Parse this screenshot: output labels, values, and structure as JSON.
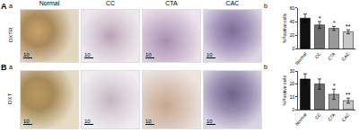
{
  "figure": {
    "columns": [
      "Normal",
      "CC",
      "CTA",
      "CAC"
    ],
    "rows": [
      {
        "label": "A",
        "panel_a": "a",
        "panel_b": "b",
        "stain": "OXTR",
        "scale_bar": "10"
      },
      {
        "label": "B",
        "panel_a": "a",
        "panel_b": "b",
        "stain": "OXT",
        "scale_bar": "10"
      }
    ]
  },
  "chart_data": [
    {
      "type": "bar",
      "categories": [
        "Normal",
        "CC",
        "CTA",
        "CAC"
      ],
      "values": [
        45,
        35,
        30,
        25
      ],
      "errors": [
        6,
        5,
        3,
        3
      ],
      "colors": [
        "#111111",
        "#6e6e6e",
        "#9a9a9a",
        "#c8c8c8"
      ],
      "ylim": [
        0,
        60
      ],
      "yticks": [
        0,
        20,
        40,
        60
      ],
      "y_label": "%Positive cells",
      "annotations": [
        {
          "category": "CC",
          "text": "*"
        },
        {
          "category": "CTA",
          "text": "*"
        },
        {
          "category": "CAC",
          "text": "**"
        }
      ]
    },
    {
      "type": "bar",
      "categories": [
        "Normal",
        "CC",
        "CTA",
        "CAC"
      ],
      "values": [
        24,
        20,
        12,
        7
      ],
      "errors": [
        4,
        4,
        4,
        2
      ],
      "colors": [
        "#111111",
        "#6e6e6e",
        "#9a9a9a",
        "#c8c8c8"
      ],
      "ylim": [
        0,
        30
      ],
      "yticks": [
        0,
        10,
        20,
        30
      ],
      "y_label": "%Positive cells",
      "annotations": [
        {
          "category": "CTA",
          "text": "*"
        },
        {
          "category": "CAC",
          "text": "**"
        }
      ]
    }
  ]
}
